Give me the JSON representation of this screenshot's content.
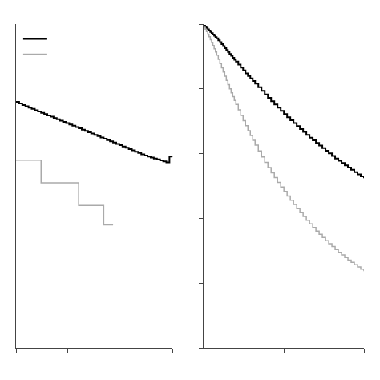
{
  "chart_data": [
    {
      "type": "step",
      "xlim": [
        0,
        1
      ],
      "ylim": [
        0,
        1
      ],
      "xticks": [
        0.0,
        0.33,
        0.66,
        1.0
      ],
      "yticks": [],
      "tick_labels": false,
      "grid": false,
      "legend": "upper left",
      "series": [
        {
          "color": "#000000",
          "x": [
            0.0,
            0.02,
            0.04,
            0.06,
            0.08,
            0.1,
            0.12,
            0.14,
            0.16,
            0.18,
            0.2,
            0.22,
            0.24,
            0.26,
            0.28,
            0.3,
            0.32,
            0.34,
            0.36,
            0.38,
            0.4,
            0.42,
            0.44,
            0.46,
            0.48,
            0.5,
            0.52,
            0.54,
            0.56,
            0.58,
            0.6,
            0.62,
            0.64,
            0.66,
            0.68,
            0.7,
            0.72,
            0.74,
            0.76,
            0.78,
            0.8,
            0.82,
            0.84,
            0.86,
            0.88,
            0.9,
            0.92,
            0.94,
            0.96,
            0.98,
            1.0
          ],
          "values": [
            0.76,
            0.755,
            0.75,
            0.746,
            0.742,
            0.738,
            0.734,
            0.73,
            0.726,
            0.722,
            0.718,
            0.714,
            0.71,
            0.706,
            0.702,
            0.698,
            0.694,
            0.69,
            0.686,
            0.682,
            0.678,
            0.674,
            0.67,
            0.666,
            0.662,
            0.658,
            0.654,
            0.65,
            0.646,
            0.642,
            0.638,
            0.634,
            0.63,
            0.626,
            0.622,
            0.618,
            0.614,
            0.61,
            0.606,
            0.602,
            0.598,
            0.594,
            0.591,
            0.588,
            0.585,
            0.582,
            0.579,
            0.576,
            0.573,
            0.591,
            0.59
          ]
        },
        {
          "color": "#aaaaaa",
          "x": [
            0.0,
            0.16,
            0.16,
            0.4,
            0.4,
            0.56,
            0.56,
            0.62
          ],
          "values": [
            0.58,
            0.58,
            0.51,
            0.51,
            0.44,
            0.44,
            0.38,
            0.38
          ]
        }
      ]
    },
    {
      "type": "step",
      "xlim": [
        0,
        1
      ],
      "ylim": [
        0,
        1
      ],
      "xticks": [
        0.0,
        0.5,
        1.0
      ],
      "yticks": [
        0.0,
        0.2,
        0.4,
        0.6,
        0.8,
        1.0
      ],
      "tick_labels": false,
      "grid": false,
      "series": [
        {
          "color": "#000000",
          "x": [
            0.0,
            0.008,
            0.016,
            0.024,
            0.032,
            0.04,
            0.048,
            0.056,
            0.064,
            0.072,
            0.08,
            0.09,
            0.1,
            0.11,
            0.12,
            0.13,
            0.14,
            0.15,
            0.16,
            0.17,
            0.18,
            0.19,
            0.2,
            0.215,
            0.23,
            0.245,
            0.26,
            0.275,
            0.29,
            0.305,
            0.32,
            0.34,
            0.36,
            0.38,
            0.4,
            0.42,
            0.44,
            0.46,
            0.48,
            0.5,
            0.52,
            0.54,
            0.56,
            0.58,
            0.6,
            0.62,
            0.64,
            0.66,
            0.68,
            0.7,
            0.72,
            0.74,
            0.76,
            0.78,
            0.8,
            0.82,
            0.84,
            0.86,
            0.88,
            0.9,
            0.92,
            0.94,
            0.96,
            0.98,
            1.0
          ],
          "values": [
            0.995,
            0.992,
            0.988,
            0.984,
            0.98,
            0.976,
            0.972,
            0.968,
            0.964,
            0.96,
            0.956,
            0.95,
            0.944,
            0.938,
            0.932,
            0.926,
            0.92,
            0.914,
            0.908,
            0.902,
            0.896,
            0.89,
            0.884,
            0.875,
            0.866,
            0.857,
            0.848,
            0.84,
            0.832,
            0.824,
            0.816,
            0.805,
            0.794,
            0.783,
            0.772,
            0.762,
            0.752,
            0.742,
            0.732,
            0.722,
            0.712,
            0.703,
            0.694,
            0.685,
            0.676,
            0.667,
            0.658,
            0.649,
            0.641,
            0.633,
            0.625,
            0.617,
            0.609,
            0.601,
            0.593,
            0.585,
            0.578,
            0.571,
            0.564,
            0.557,
            0.55,
            0.543,
            0.536,
            0.53,
            0.524
          ]
        },
        {
          "color": "#aaaaaa",
          "x": [
            0.0,
            0.008,
            0.016,
            0.024,
            0.032,
            0.04,
            0.048,
            0.056,
            0.064,
            0.072,
            0.08,
            0.09,
            0.1,
            0.11,
            0.12,
            0.13,
            0.14,
            0.15,
            0.16,
            0.17,
            0.18,
            0.19,
            0.2,
            0.215,
            0.23,
            0.245,
            0.26,
            0.275,
            0.29,
            0.305,
            0.32,
            0.34,
            0.36,
            0.38,
            0.4,
            0.42,
            0.44,
            0.46,
            0.48,
            0.5,
            0.52,
            0.54,
            0.56,
            0.58,
            0.6,
            0.62,
            0.64,
            0.66,
            0.68,
            0.7,
            0.72,
            0.74,
            0.76,
            0.78,
            0.8,
            0.82,
            0.84,
            0.86,
            0.88,
            0.9,
            0.92,
            0.94,
            0.96,
            0.98,
            1.0
          ],
          "values": [
            0.99,
            0.984,
            0.977,
            0.969,
            0.961,
            0.952,
            0.943,
            0.934,
            0.924,
            0.914,
            0.904,
            0.891,
            0.878,
            0.865,
            0.852,
            0.839,
            0.826,
            0.813,
            0.8,
            0.788,
            0.776,
            0.764,
            0.752,
            0.735,
            0.718,
            0.702,
            0.686,
            0.671,
            0.656,
            0.641,
            0.626,
            0.608,
            0.59,
            0.573,
            0.557,
            0.541,
            0.526,
            0.511,
            0.497,
            0.483,
            0.469,
            0.456,
            0.443,
            0.43,
            0.418,
            0.406,
            0.394,
            0.383,
            0.372,
            0.361,
            0.351,
            0.341,
            0.331,
            0.322,
            0.313,
            0.304,
            0.295,
            0.287,
            0.279,
            0.271,
            0.264,
            0.257,
            0.25,
            0.243,
            0.237
          ]
        }
      ]
    }
  ]
}
